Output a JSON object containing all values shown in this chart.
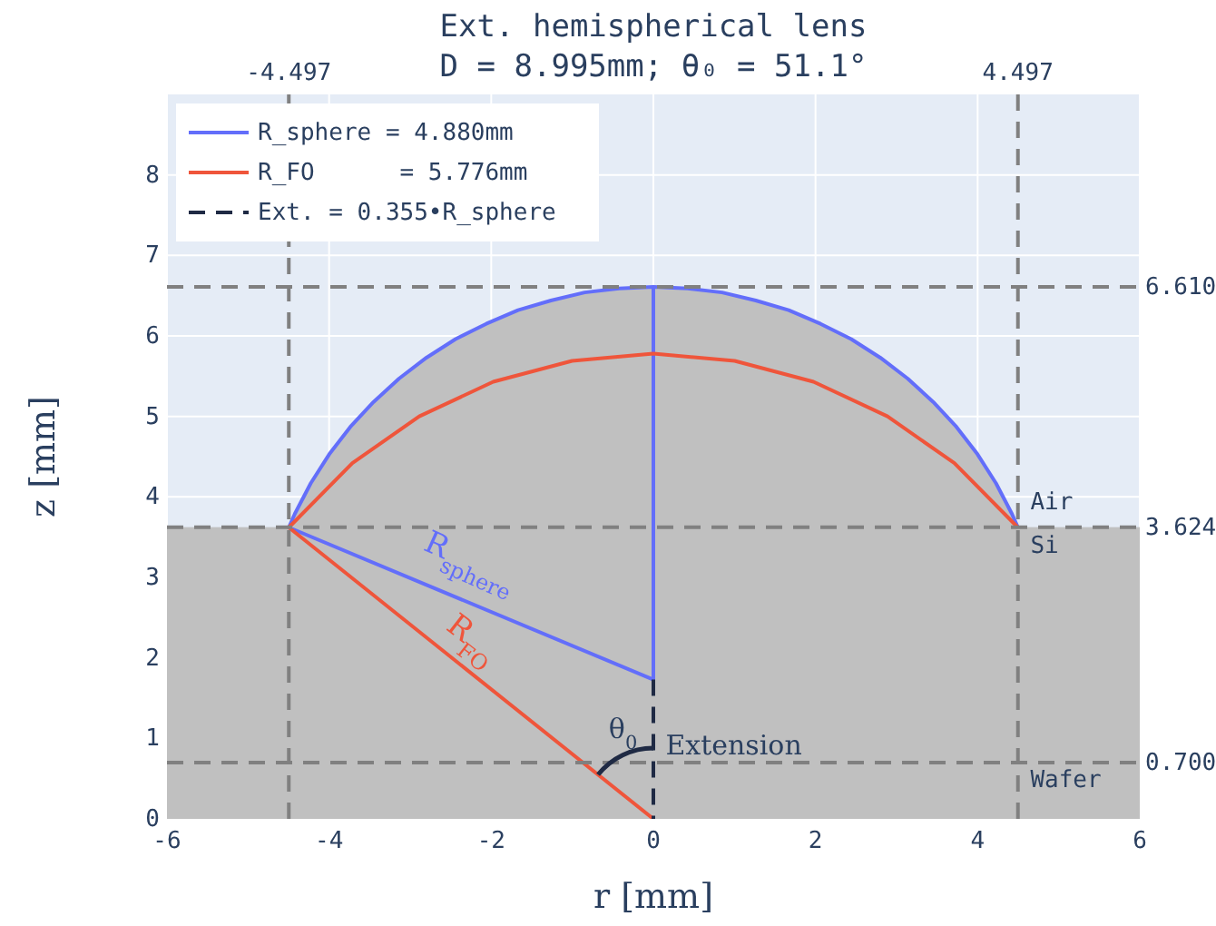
{
  "chart_data": {
    "type": "line",
    "title": "Ext. hemispherical lens",
    "subtitle": "D = 8.995mm; θ₀ = 51.1°",
    "xlabel": "r [mm]",
    "ylabel": "z [mm]",
    "xlim": [
      -6,
      6
    ],
    "xticks": [
      -6,
      -4,
      -2,
      0,
      2,
      4,
      6
    ],
    "ylim": [
      0,
      9
    ],
    "yticks": [
      0,
      1,
      2,
      3,
      4,
      5,
      6,
      7,
      8
    ],
    "x2lim": [
      -6,
      6
    ],
    "x2ticks": [
      -4.497,
      4.497
    ],
    "y2lim": [
      0,
      9
    ],
    "y2ticks": [
      {
        "value": 0.7,
        "label": "0.700"
      },
      3.624,
      {
        "value": 6.61,
        "label": "6.610"
      }
    ],
    "grid": true,
    "legend": "top left",
    "line_style": "solid",
    "bands": [
      {
        "axis": "y",
        "from": 0,
        "to": 3.624,
        "color": "#c0c0c0"
      }
    ],
    "series": [
      {
        "type": "area",
        "color": "#c0c0c0",
        "x": [
          -4.497,
          -4.423,
          -4.226,
          -3.998,
          -3.738,
          -3.451,
          -3.137,
          -2.799,
          -2.44,
          -2.062,
          -1.669,
          -1.263,
          -0.847,
          -0.425,
          0,
          0.425,
          0.847,
          1.263,
          1.669,
          2.062,
          2.44,
          2.799,
          3.137,
          3.451,
          3.738,
          3.998,
          4.226,
          4.423,
          4.497
        ],
        "values": [
          3.62,
          3.79,
          4.17,
          4.53,
          4.87,
          5.18,
          5.47,
          5.73,
          5.96,
          6.15,
          6.32,
          6.44,
          6.54,
          6.59,
          6.61,
          6.59,
          6.54,
          6.44,
          6.32,
          6.15,
          5.96,
          5.73,
          5.47,
          5.18,
          4.87,
          4.53,
          4.17,
          3.79,
          3.62
        ]
      },
      {
        "name": "R_sphere = 4.880mm",
        "color": "#636efa",
        "x": [
          0,
          0,
          -4.497,
          -4.423,
          -4.226,
          -3.998,
          -3.738,
          -3.451,
          -3.137,
          -2.799,
          -2.44,
          -2.062,
          -1.669,
          -1.263,
          -0.847,
          -0.425,
          0,
          0.425,
          0.847,
          1.263,
          1.669,
          2.062,
          2.44,
          2.799,
          3.137,
          3.451,
          3.738,
          3.998,
          4.226,
          4.423,
          4.497
        ],
        "values": [
          6.61,
          1.73,
          3.62,
          3.79,
          4.17,
          4.53,
          4.87,
          5.18,
          5.47,
          5.73,
          5.96,
          6.15,
          6.32,
          6.44,
          6.54,
          6.59,
          6.61,
          6.59,
          6.54,
          6.44,
          6.32,
          6.15,
          5.96,
          5.73,
          5.47,
          5.18,
          4.87,
          4.53,
          4.17,
          3.79,
          3.62
        ]
      },
      {
        "name": "R_FO      = 5.776mm",
        "color": "#ef553b",
        "x": [
          0,
          -4.497,
          -3.713,
          -2.888,
          -1.975,
          -1.003,
          0,
          1.003,
          1.975,
          2.888,
          3.713,
          4.497
        ],
        "values": [
          0,
          3.62,
          4.42,
          5.0,
          5.43,
          5.69,
          5.78,
          5.69,
          5.43,
          5.0,
          4.42,
          3.62
        ]
      },
      {
        "name": "Ext. = 0.355•R_sphere",
        "color": "#1f2a44",
        "line_style": "dashed",
        "x": [
          0,
          0
        ],
        "values": [
          1.73,
          0
        ]
      }
    ],
    "annotations": [
      "Air",
      "Si",
      "Wafer",
      "R$_{sphere}$",
      "R$_{FO}$",
      "θ$_{0}$",
      "Extension"
    ]
  }
}
